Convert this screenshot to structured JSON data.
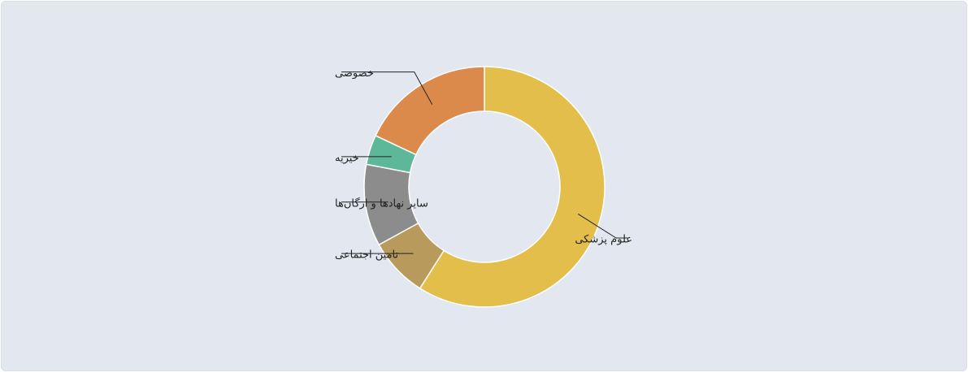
{
  "chart_data": {
    "type": "pie",
    "donut": true,
    "title": "",
    "categories": [
      "علوم پزشکی",
      "تامین اجتماعی",
      "سایر نهادها و ارگان‌ها",
      "خیریه",
      "خصوصی"
    ],
    "values": [
      59,
      8,
      11,
      4,
      18
    ],
    "colors": [
      "#e3be4a",
      "#b89a5c",
      "#8c8c8c",
      "#5db89a",
      "#dc8a4b"
    ],
    "legend": "none"
  }
}
